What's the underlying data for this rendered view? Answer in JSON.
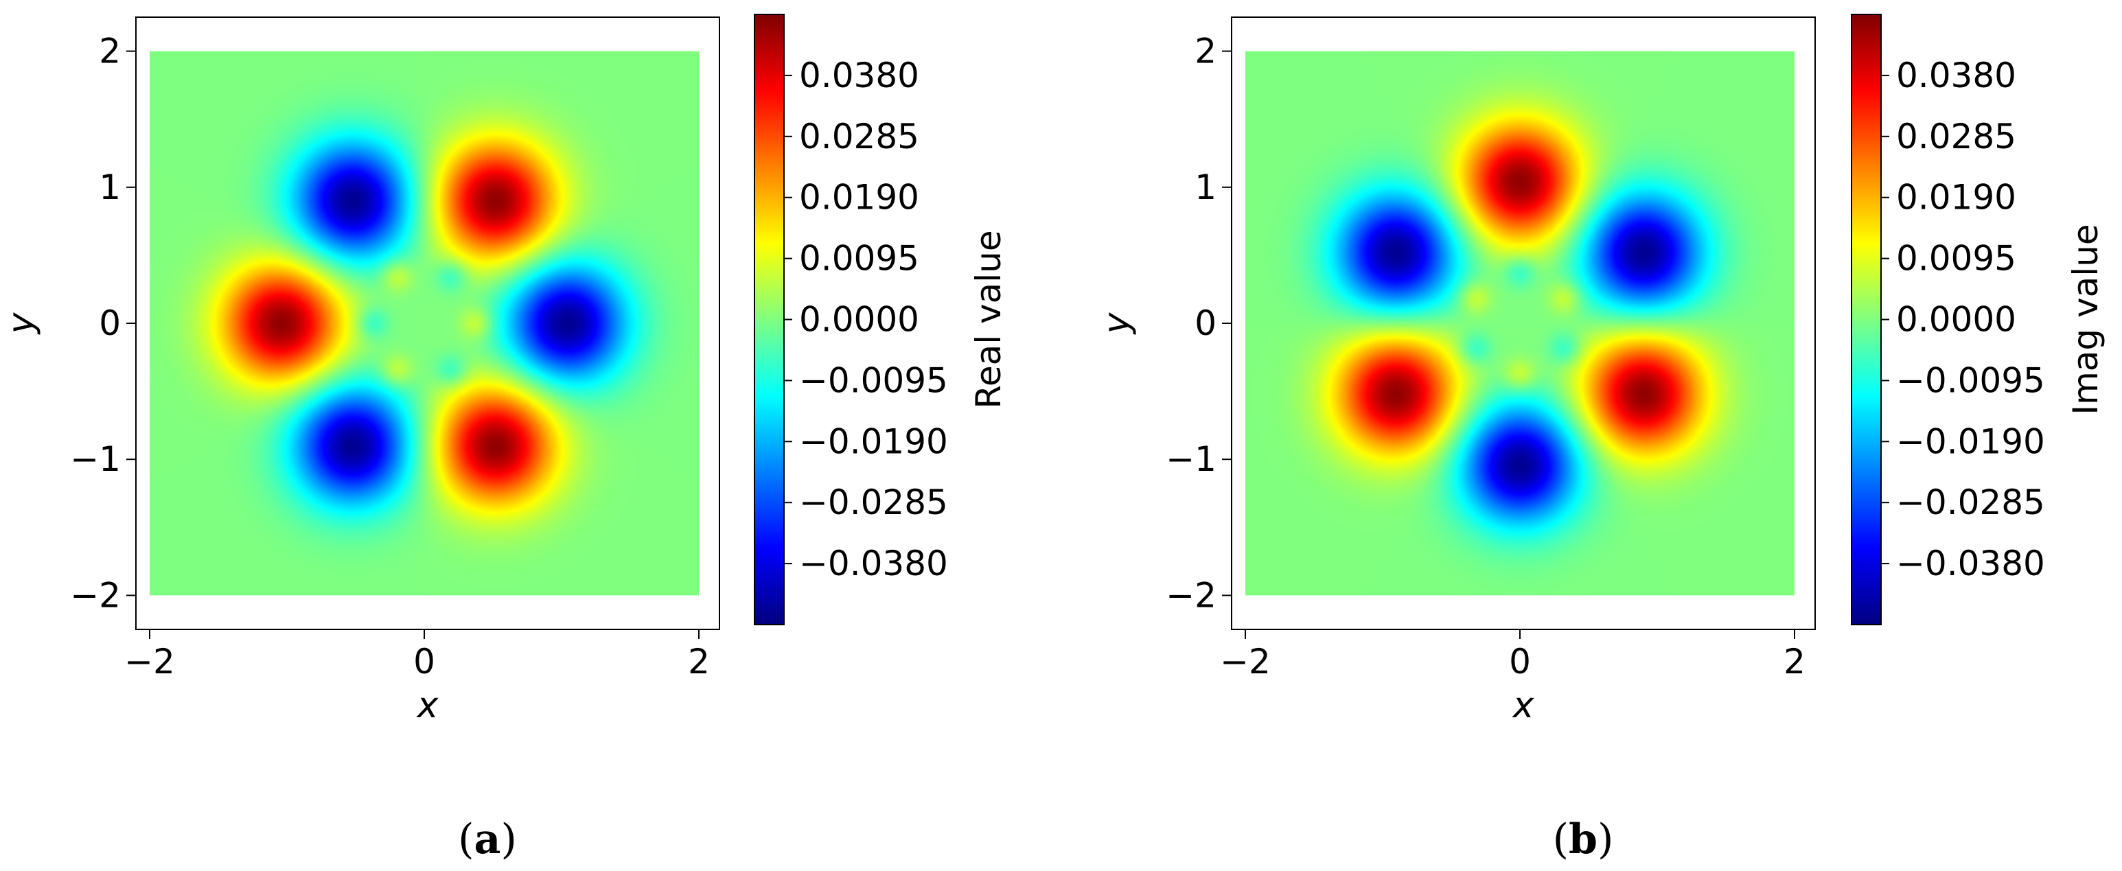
{
  "colors": {
    "colormap": "jet",
    "jet_stops": [
      "#000080",
      "#0000ff",
      "#00ffff",
      "#ffff00",
      "#ff0000",
      "#800000"
    ],
    "axis": "#000000",
    "background": "#ffffff"
  },
  "panels": [
    {
      "id": "a",
      "caption_open": "(",
      "caption_letter": "a",
      "caption_close": ")"
    },
    {
      "id": "b",
      "caption_open": "(",
      "caption_letter": "b",
      "caption_close": ")"
    }
  ],
  "chart_data": [
    {
      "type": "heatmap",
      "panel": "a",
      "xlabel": "x",
      "ylabel": "y",
      "xlim": [
        -2.1,
        2.15
      ],
      "ylim": [
        -2.25,
        2.25
      ],
      "data_extent": [
        -2,
        2
      ],
      "xticks": [
        -2,
        0,
        2
      ],
      "xtick_labels": [
        "−2",
        "0",
        "2"
      ],
      "yticks": [
        2,
        1,
        0,
        -1,
        -2
      ],
      "ytick_labels": [
        "2",
        "1",
        "0",
        "−1",
        "−2"
      ],
      "grid": false,
      "colorbar": {
        "label": "Real value",
        "range": [
          -0.0475,
          0.0475
        ],
        "ticks": [
          0.038,
          0.0285,
          0.019,
          0.0095,
          0.0,
          -0.0095,
          -0.019,
          -0.0285,
          -0.038
        ],
        "tick_labels": [
          "0.0380",
          "0.0285",
          "0.0190",
          "0.0095",
          "0.0000",
          "−0.0095",
          "−0.0190",
          "−0.0285",
          "−0.0380"
        ]
      },
      "field": {
        "form": "sum of gaussian blobs",
        "baseline": 0.0
      },
      "peaks": [
        {
          "x": 0.52,
          "y": 0.9,
          "value": 0.046,
          "width": 0.3
        },
        {
          "x": -0.52,
          "y": 0.9,
          "value": -0.046,
          "width": 0.3
        },
        {
          "x": -1.04,
          "y": 0.0,
          "value": 0.046,
          "width": 0.3
        },
        {
          "x": 1.04,
          "y": 0.0,
          "value": -0.046,
          "width": 0.3
        },
        {
          "x": -0.52,
          "y": -0.9,
          "value": -0.046,
          "width": 0.3
        },
        {
          "x": 0.52,
          "y": -0.9,
          "value": 0.046,
          "width": 0.3
        },
        {
          "x": -0.2,
          "y": 0.35,
          "value": 0.009,
          "width": 0.085
        },
        {
          "x": 0.2,
          "y": 0.35,
          "value": -0.009,
          "width": 0.085
        },
        {
          "x": 0.38,
          "y": 0.0,
          "value": 0.009,
          "width": 0.085
        },
        {
          "x": -0.38,
          "y": 0.0,
          "value": -0.009,
          "width": 0.085
        },
        {
          "x": -0.2,
          "y": -0.35,
          "value": 0.009,
          "width": 0.085
        },
        {
          "x": 0.2,
          "y": -0.35,
          "value": -0.009,
          "width": 0.085
        }
      ]
    },
    {
      "type": "heatmap",
      "panel": "b",
      "xlabel": "x",
      "ylabel": "y",
      "xlim": [
        -2.1,
        2.15
      ],
      "ylim": [
        -2.25,
        2.25
      ],
      "data_extent": [
        -2,
        2
      ],
      "xticks": [
        -2,
        0,
        2
      ],
      "xtick_labels": [
        "−2",
        "0",
        "2"
      ],
      "yticks": [
        2,
        1,
        0,
        -1,
        -2
      ],
      "ytick_labels": [
        "2",
        "1",
        "0",
        "−1",
        "−2"
      ],
      "grid": false,
      "colorbar": {
        "label": "Imag value",
        "range": [
          -0.0475,
          0.0475
        ],
        "ticks": [
          0.038,
          0.0285,
          0.019,
          0.0095,
          0.0,
          -0.0095,
          -0.019,
          -0.0285,
          -0.038
        ],
        "tick_labels": [
          "0.0380",
          "0.0285",
          "0.0190",
          "0.0095",
          "0.0000",
          "−0.0095",
          "−0.0190",
          "−0.0285",
          "−0.0380"
        ]
      },
      "field": {
        "form": "sum of gaussian blobs",
        "baseline": 0.0
      },
      "peaks": [
        {
          "x": 0.0,
          "y": 1.04,
          "value": 0.046,
          "width": 0.3
        },
        {
          "x": 0.9,
          "y": 0.52,
          "value": -0.046,
          "width": 0.3
        },
        {
          "x": -0.9,
          "y": 0.52,
          "value": -0.046,
          "width": 0.3
        },
        {
          "x": -0.9,
          "y": -0.52,
          "value": 0.046,
          "width": 0.3
        },
        {
          "x": 0.9,
          "y": -0.52,
          "value": 0.046,
          "width": 0.3
        },
        {
          "x": 0.0,
          "y": -1.04,
          "value": -0.046,
          "width": 0.3
        },
        {
          "x": 0.0,
          "y": 0.38,
          "value": -0.009,
          "width": 0.085
        },
        {
          "x": 0.33,
          "y": 0.19,
          "value": 0.009,
          "width": 0.085
        },
        {
          "x": -0.33,
          "y": 0.19,
          "value": 0.009,
          "width": 0.085
        },
        {
          "x": 0.33,
          "y": -0.19,
          "value": -0.009,
          "width": 0.085
        },
        {
          "x": -0.33,
          "y": -0.19,
          "value": -0.009,
          "width": 0.085
        },
        {
          "x": 0.0,
          "y": -0.38,
          "value": 0.009,
          "width": 0.085
        }
      ]
    }
  ]
}
